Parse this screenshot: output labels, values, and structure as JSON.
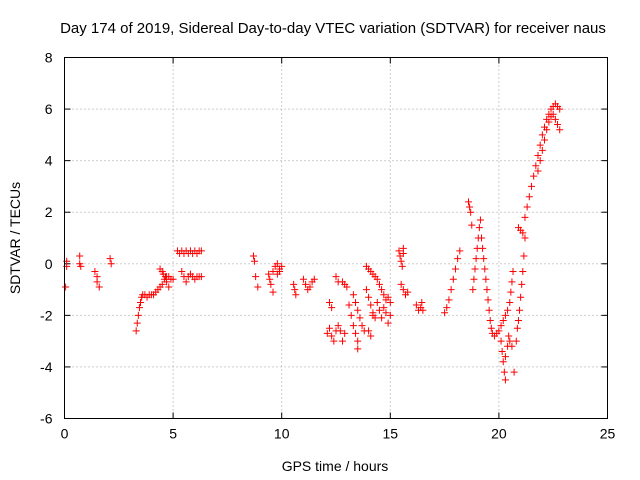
{
  "chart_data": {
    "type": "scatter",
    "title": "Day 174 of 2019, Sidereal Day-to-day VTEC variation (SDTVAR) for receiver naus",
    "xlabel": "GPS time / hours",
    "ylabel": "SDTVAR / TECUs",
    "xlim": [
      0,
      25
    ],
    "ylim": [
      -6,
      8
    ],
    "grid": true,
    "marker": "plus",
    "color": "#ff0000",
    "xticks": [
      "0",
      "5",
      "10",
      "15",
      "20",
      "25"
    ],
    "yticks": [
      "-6",
      "-4",
      "-2",
      "0",
      "2",
      "4",
      "6",
      "8"
    ],
    "series": [
      {
        "name": "SDTVAR",
        "points": [
          [
            0.05,
            -0.9
          ],
          [
            0.1,
            0.1
          ],
          [
            0.1,
            -0.1
          ],
          [
            0.7,
            0.3
          ],
          [
            0.7,
            0.0
          ],
          [
            0.75,
            -0.1
          ],
          [
            1.4,
            -0.3
          ],
          [
            1.5,
            -0.5
          ],
          [
            1.5,
            -0.7
          ],
          [
            1.6,
            -0.9
          ],
          [
            2.1,
            0.2
          ],
          [
            2.15,
            0.0
          ],
          [
            3.3,
            -2.6
          ],
          [
            3.35,
            -2.3
          ],
          [
            3.4,
            -2.0
          ],
          [
            3.45,
            -1.7
          ],
          [
            3.5,
            -1.5
          ],
          [
            3.55,
            -1.3
          ],
          [
            3.6,
            -1.2
          ],
          [
            3.7,
            -1.2
          ],
          [
            3.8,
            -1.3
          ],
          [
            3.9,
            -1.2
          ],
          [
            4.0,
            -1.2
          ],
          [
            4.1,
            -1.2
          ],
          [
            4.2,
            -1.1
          ],
          [
            4.3,
            -1.0
          ],
          [
            4.4,
            -0.9
          ],
          [
            4.5,
            -0.8
          ],
          [
            4.6,
            -0.6
          ],
          [
            4.7,
            -0.5
          ],
          [
            4.8,
            -0.5
          ],
          [
            4.9,
            -0.6
          ],
          [
            5.0,
            -0.6
          ],
          [
            4.4,
            -0.2
          ],
          [
            4.5,
            -0.3
          ],
          [
            4.55,
            -0.4
          ],
          [
            4.65,
            -0.5
          ],
          [
            4.7,
            -0.7
          ],
          [
            4.8,
            -0.9
          ],
          [
            5.2,
            0.5
          ],
          [
            5.3,
            0.4
          ],
          [
            5.4,
            0.5
          ],
          [
            5.5,
            0.4
          ],
          [
            5.6,
            0.5
          ],
          [
            5.7,
            0.4
          ],
          [
            5.8,
            0.5
          ],
          [
            5.9,
            0.4
          ],
          [
            6.0,
            0.5
          ],
          [
            6.1,
            0.4
          ],
          [
            6.2,
            0.5
          ],
          [
            6.3,
            0.5
          ],
          [
            5.4,
            -0.3
          ],
          [
            5.5,
            -0.5
          ],
          [
            5.6,
            -0.7
          ],
          [
            5.7,
            -0.5
          ],
          [
            5.8,
            -0.4
          ],
          [
            5.9,
            -0.5
          ],
          [
            6.0,
            -0.6
          ],
          [
            6.1,
            -0.5
          ],
          [
            6.2,
            -0.5
          ],
          [
            6.3,
            -0.5
          ],
          [
            8.7,
            0.3
          ],
          [
            8.75,
            0.1
          ],
          [
            8.8,
            -0.5
          ],
          [
            8.9,
            -0.9
          ],
          [
            9.4,
            -0.4
          ],
          [
            9.45,
            -0.6
          ],
          [
            9.5,
            -0.8
          ],
          [
            9.6,
            -1.1
          ],
          [
            9.6,
            -0.3
          ],
          [
            9.7,
            -0.1
          ],
          [
            9.8,
            0.0
          ],
          [
            9.9,
            -0.2
          ],
          [
            10.0,
            -0.1
          ],
          [
            9.8,
            -0.4
          ],
          [
            9.9,
            -0.3
          ],
          [
            10.55,
            -0.8
          ],
          [
            10.6,
            -1.0
          ],
          [
            10.65,
            -1.2
          ],
          [
            11.0,
            -0.6
          ],
          [
            11.1,
            -0.8
          ],
          [
            11.2,
            -1.0
          ],
          [
            11.3,
            -0.9
          ],
          [
            11.4,
            -0.7
          ],
          [
            11.5,
            -0.6
          ],
          [
            12.1,
            -2.7
          ],
          [
            12.2,
            -2.5
          ],
          [
            12.3,
            -2.8
          ],
          [
            12.4,
            -3.0
          ],
          [
            12.5,
            -2.6
          ],
          [
            12.6,
            -2.4
          ],
          [
            12.2,
            -1.5
          ],
          [
            12.3,
            -1.7
          ],
          [
            12.5,
            -0.5
          ],
          [
            12.6,
            -0.7
          ],
          [
            12.7,
            -2.6
          ],
          [
            12.8,
            -3.0
          ],
          [
            12.9,
            -2.7
          ],
          [
            12.8,
            -0.7
          ],
          [
            12.9,
            -0.8
          ],
          [
            13.0,
            -0.9
          ],
          [
            13.1,
            -1.6
          ],
          [
            13.2,
            -2.0
          ],
          [
            13.3,
            -2.4
          ],
          [
            13.4,
            -2.7
          ],
          [
            13.5,
            -3.0
          ],
          [
            13.5,
            -3.3
          ],
          [
            13.3,
            -1.2
          ],
          [
            13.4,
            -1.5
          ],
          [
            13.5,
            -1.8
          ],
          [
            13.6,
            -2.1
          ],
          [
            13.7,
            -2.4
          ],
          [
            13.8,
            -2.6
          ],
          [
            13.9,
            -1.0
          ],
          [
            14.0,
            -1.3
          ],
          [
            14.1,
            -1.6
          ],
          [
            14.2,
            -1.9
          ],
          [
            14.3,
            -2.1
          ],
          [
            14.0,
            -2.6
          ],
          [
            14.1,
            -2.8
          ],
          [
            14.2,
            -2.0
          ],
          [
            13.9,
            -0.1
          ],
          [
            14.0,
            -0.2
          ],
          [
            14.1,
            -0.3
          ],
          [
            14.2,
            -0.4
          ],
          [
            14.3,
            -0.5
          ],
          [
            14.4,
            -0.6
          ],
          [
            14.5,
            -0.8
          ],
          [
            14.6,
            -1.0
          ],
          [
            14.7,
            -1.2
          ],
          [
            14.4,
            -1.5
          ],
          [
            14.5,
            -1.8
          ],
          [
            14.6,
            -2.1
          ],
          [
            14.7,
            -1.7
          ],
          [
            14.8,
            -1.4
          ],
          [
            14.9,
            -1.3
          ],
          [
            15.0,
            -1.5
          ],
          [
            15.0,
            -2.0
          ],
          [
            14.9,
            -2.3
          ],
          [
            14.8,
            -1.9
          ],
          [
            15.4,
            0.5
          ],
          [
            15.45,
            0.3
          ],
          [
            15.5,
            0.1
          ],
          [
            15.55,
            -0.1
          ],
          [
            15.6,
            0.6
          ],
          [
            15.6,
            0.4
          ],
          [
            15.5,
            -0.8
          ],
          [
            15.6,
            -1.0
          ],
          [
            15.7,
            -1.2
          ],
          [
            15.8,
            -1.1
          ],
          [
            16.2,
            -1.6
          ],
          [
            16.3,
            -1.8
          ],
          [
            16.4,
            -1.7
          ],
          [
            16.45,
            -1.5
          ],
          [
            16.5,
            -1.8
          ],
          [
            17.5,
            -1.9
          ],
          [
            17.6,
            -1.7
          ],
          [
            17.7,
            -1.4
          ],
          [
            17.8,
            -1.0
          ],
          [
            17.9,
            -0.6
          ],
          [
            18.0,
            -0.2
          ],
          [
            18.1,
            0.2
          ],
          [
            18.2,
            0.5
          ],
          [
            18.6,
            2.4
          ],
          [
            18.65,
            2.2
          ],
          [
            18.7,
            2.0
          ],
          [
            18.75,
            1.5
          ],
          [
            18.8,
            -1.0
          ],
          [
            18.85,
            -0.6
          ],
          [
            18.9,
            -0.2
          ],
          [
            18.95,
            0.2
          ],
          [
            19.0,
            0.6
          ],
          [
            19.05,
            1.0
          ],
          [
            19.1,
            1.4
          ],
          [
            19.15,
            1.7
          ],
          [
            19.2,
            1.0
          ],
          [
            19.25,
            0.6
          ],
          [
            19.3,
            0.2
          ],
          [
            19.35,
            -0.2
          ],
          [
            19.4,
            -0.6
          ],
          [
            19.45,
            -1.0
          ],
          [
            19.5,
            -1.4
          ],
          [
            19.55,
            -1.8
          ],
          [
            19.6,
            -2.2
          ],
          [
            19.65,
            -2.5
          ],
          [
            19.7,
            -2.7
          ],
          [
            19.8,
            -2.8
          ],
          [
            19.9,
            -2.7
          ],
          [
            20.0,
            -2.6
          ],
          [
            20.1,
            -2.4
          ],
          [
            20.2,
            -2.2
          ],
          [
            20.3,
            -2.0
          ],
          [
            20.4,
            -1.8
          ],
          [
            20.5,
            -1.5
          ],
          [
            20.55,
            -1.1
          ],
          [
            20.6,
            -0.7
          ],
          [
            20.65,
            -0.3
          ],
          [
            20.1,
            -3.0
          ],
          [
            20.15,
            -3.4
          ],
          [
            20.2,
            -3.8
          ],
          [
            20.25,
            -4.2
          ],
          [
            20.3,
            -4.5
          ],
          [
            20.3,
            -3.6
          ],
          [
            20.4,
            -3.2
          ],
          [
            20.45,
            -2.8
          ],
          [
            20.5,
            -3.0
          ],
          [
            20.6,
            -3.2
          ],
          [
            20.7,
            -4.2
          ],
          [
            20.8,
            -3.0
          ],
          [
            20.85,
            -2.5
          ],
          [
            20.9,
            -2.2
          ],
          [
            20.95,
            -1.8
          ],
          [
            21.0,
            -1.3
          ],
          [
            21.05,
            -0.8
          ],
          [
            21.1,
            -0.3
          ],
          [
            21.15,
            0.3
          ],
          [
            21.2,
            1.0
          ],
          [
            21.1,
            1.2
          ],
          [
            20.9,
            1.4
          ],
          [
            21.0,
            1.3
          ],
          [
            21.2,
            1.8
          ],
          [
            21.3,
            2.2
          ],
          [
            21.4,
            2.6
          ],
          [
            21.5,
            3.0
          ],
          [
            21.6,
            3.4
          ],
          [
            21.7,
            3.8
          ],
          [
            21.8,
            4.2
          ],
          [
            21.9,
            4.6
          ],
          [
            22.0,
            5.0
          ],
          [
            22.1,
            5.3
          ],
          [
            22.2,
            5.6
          ],
          [
            22.3,
            5.8
          ],
          [
            22.4,
            6.0
          ],
          [
            22.5,
            6.1
          ],
          [
            22.6,
            6.2
          ],
          [
            22.7,
            6.1
          ],
          [
            22.8,
            6.0
          ],
          [
            21.8,
            3.6
          ],
          [
            21.9,
            4.0
          ],
          [
            22.0,
            4.4
          ],
          [
            22.1,
            4.8
          ],
          [
            22.2,
            5.2
          ],
          [
            22.3,
            5.5
          ],
          [
            22.4,
            5.7
          ],
          [
            22.5,
            5.8
          ],
          [
            22.6,
            5.6
          ],
          [
            22.7,
            5.4
          ],
          [
            22.8,
            5.2
          ]
        ]
      }
    ]
  }
}
